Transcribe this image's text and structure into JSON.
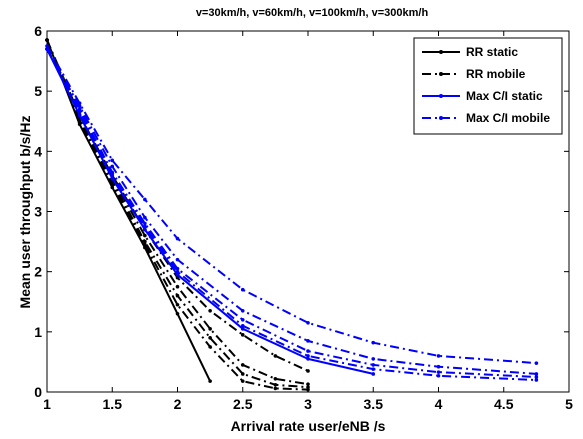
{
  "chart_data": {
    "type": "line",
    "title": "v=30km/h, v=60km/h, v=100km/h, v=300km/h",
    "xlabel": "Arrival rate user/eNB /s",
    "ylabel": "Mean user throughput b/s/Hz",
    "xlim": [
      1,
      5
    ],
    "ylim": [
      0,
      6
    ],
    "xticks": [
      "1",
      "1.5",
      "2",
      "2.5",
      "3",
      "3.5",
      "4",
      "4.5",
      "5"
    ],
    "yticks": [
      "0",
      "1",
      "2",
      "3",
      "4",
      "5",
      "6"
    ],
    "grid": false,
    "legend_position": "top-right",
    "legend": [
      {
        "label": "RR static",
        "color": "#000000",
        "dash": "solid"
      },
      {
        "label": "RR mobile",
        "color": "#000000",
        "dash": "dashdot"
      },
      {
        "label": "Max C/I static",
        "color": "#0000ff",
        "dash": "solid"
      },
      {
        "label": "Max C/I  mobile",
        "color": "#0000ff",
        "dash": "dashdot"
      }
    ],
    "series": [
      {
        "name": "RR static",
        "color": "#000000",
        "dash": "solid",
        "x": [
          1,
          1.25,
          1.5,
          1.75,
          2,
          2.25
        ],
        "y": [
          5.85,
          4.45,
          3.4,
          2.4,
          1.3,
          0.18
        ]
      },
      {
        "color": "#000000",
        "dash": "dashdot",
        "x": [
          1,
          1.25,
          1.5,
          1.75,
          2,
          2.25,
          2.5,
          2.75,
          3
        ],
        "y": [
          5.85,
          4.48,
          3.45,
          2.45,
          1.45,
          0.75,
          0.18,
          0.06,
          0.04
        ]
      },
      {
        "color": "#000000",
        "dash": "dashdot",
        "x": [
          1,
          1.25,
          1.5,
          1.75,
          2,
          2.25,
          2.5,
          2.75,
          3
        ],
        "y": [
          5.85,
          4.5,
          3.5,
          2.5,
          1.6,
          0.9,
          0.3,
          0.12,
          0.08
        ]
      },
      {
        "color": "#000000",
        "dash": "dashdot",
        "x": [
          1,
          1.25,
          1.5,
          1.75,
          2,
          2.25,
          2.5,
          2.75,
          3
        ],
        "y": [
          5.85,
          4.55,
          3.55,
          2.6,
          1.75,
          1.05,
          0.45,
          0.22,
          0.13
        ]
      },
      {
        "name": "RR mobile",
        "color": "#000000",
        "dash": "dashdot",
        "x": [
          1,
          1.25,
          1.5,
          1.75,
          2,
          2.25,
          2.5,
          2.75,
          3
        ],
        "y": [
          5.85,
          4.6,
          3.6,
          2.7,
          1.9,
          1.35,
          0.95,
          0.6,
          0.35
        ]
      },
      {
        "name": "Max C/I static",
        "color": "#0000ff",
        "dash": "solid",
        "x": [
          1,
          1.25,
          1.5,
          1.75,
          2,
          2.5,
          3,
          3.5
        ],
        "y": [
          5.7,
          4.6,
          3.55,
          2.7,
          1.95,
          1.05,
          0.55,
          0.3
        ]
      },
      {
        "color": "#0000ff",
        "dash": "dashdot",
        "x": [
          1,
          1.25,
          1.5,
          1.75,
          2,
          2.5,
          3,
          3.5,
          4,
          4.75
        ],
        "y": [
          5.7,
          4.65,
          3.6,
          2.75,
          2.0,
          1.1,
          0.6,
          0.38,
          0.27,
          0.2
        ]
      },
      {
        "color": "#0000ff",
        "dash": "dashdot",
        "x": [
          1,
          1.25,
          1.5,
          1.75,
          2,
          2.5,
          3,
          3.5,
          4,
          4.75
        ],
        "y": [
          5.7,
          4.7,
          3.65,
          2.8,
          2.05,
          1.2,
          0.68,
          0.45,
          0.33,
          0.25
        ]
      },
      {
        "color": "#0000ff",
        "dash": "dashdot",
        "x": [
          1,
          1.25,
          1.5,
          1.75,
          2,
          2.5,
          3,
          3.5,
          4,
          4.75
        ],
        "y": [
          5.7,
          4.75,
          3.75,
          2.9,
          2.2,
          1.35,
          0.85,
          0.55,
          0.42,
          0.3
        ]
      },
      {
        "name": "Max C/I  mobile",
        "color": "#0000ff",
        "dash": "dashdot",
        "x": [
          1,
          1.25,
          1.5,
          1.75,
          2,
          2.5,
          3,
          3.5,
          4,
          4.75
        ],
        "y": [
          5.75,
          4.8,
          3.85,
          3.2,
          2.55,
          1.7,
          1.15,
          0.82,
          0.6,
          0.48
        ]
      }
    ]
  }
}
